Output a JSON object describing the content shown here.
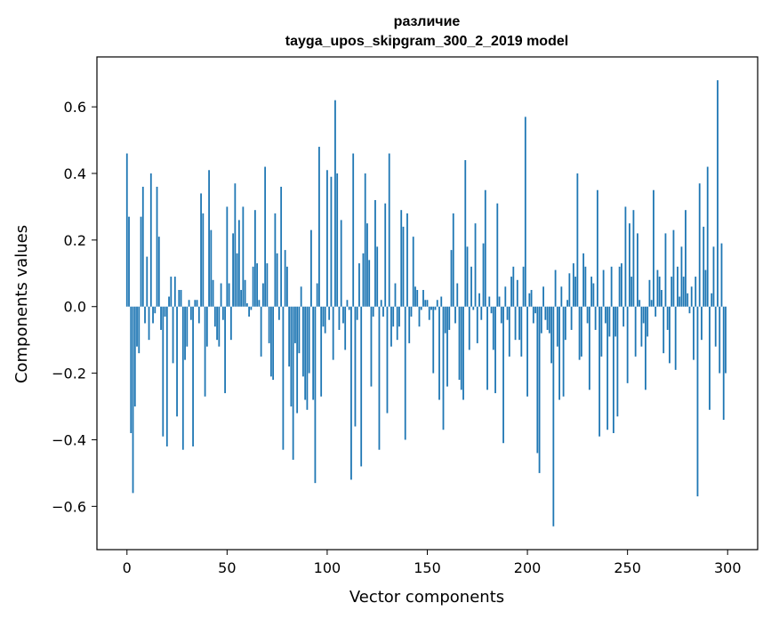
{
  "chart_data": {
    "type": "bar",
    "title": "различие",
    "subtitle": "tayga_upos_skipgram_300_2_2019 model",
    "xlabel": "Vector components",
    "ylabel": "Components values",
    "xlim": [
      -15,
      315
    ],
    "ylim": [
      -0.73,
      0.75
    ],
    "x_ticks": [
      0,
      50,
      100,
      150,
      200,
      250,
      300
    ],
    "x_tick_labels": [
      "0",
      "50",
      "100",
      "150",
      "200",
      "250",
      "300"
    ],
    "y_ticks": [
      -0.6,
      -0.4,
      -0.2,
      0.0,
      0.2,
      0.4,
      0.6
    ],
    "y_tick_labels": [
      "−0.6",
      "−0.4",
      "−0.2",
      "0.0",
      "0.2",
      "0.4",
      "0.6"
    ],
    "grid": false,
    "bar_color": "#1f77b4",
    "x": "indices 0..299",
    "values": [
      0.46,
      0.27,
      -0.38,
      -0.56,
      -0.3,
      -0.12,
      -0.14,
      0.27,
      0.36,
      -0.05,
      0.15,
      -0.1,
      0.4,
      -0.05,
      -0.02,
      0.36,
      0.21,
      -0.07,
      -0.39,
      -0.03,
      -0.42,
      0.03,
      0.09,
      -0.17,
      0.09,
      -0.33,
      0.05,
      0.05,
      -0.43,
      -0.16,
      -0.12,
      0.02,
      -0.04,
      -0.42,
      0.02,
      0.02,
      -0.05,
      0.34,
      0.28,
      -0.27,
      -0.12,
      0.41,
      0.23,
      0.08,
      -0.06,
      -0.1,
      -0.12,
      0.07,
      -0.04,
      -0.26,
      0.3,
      0.07,
      -0.1,
      0.22,
      0.37,
      0.16,
      0.26,
      0.05,
      0.3,
      0.08,
      0.01,
      -0.03,
      -0.01,
      0.12,
      0.29,
      0.13,
      0.02,
      -0.15,
      0.07,
      0.42,
      0.13,
      -0.11,
      -0.21,
      -0.22,
      0.28,
      0.16,
      -0.04,
      0.36,
      -0.43,
      0.17,
      0.12,
      -0.18,
      -0.3,
      -0.46,
      -0.11,
      -0.32,
      -0.14,
      0.06,
      -0.21,
      -0.28,
      -0.31,
      -0.2,
      0.23,
      -0.28,
      -0.53,
      0.07,
      0.48,
      -0.27,
      -0.06,
      -0.08,
      0.41,
      -0.04,
      0.39,
      -0.16,
      0.62,
      0.4,
      -0.07,
      0.26,
      -0.05,
      -0.13,
      0.02,
      -0.01,
      -0.52,
      0.46,
      -0.36,
      -0.04,
      0.13,
      -0.48,
      0.16,
      0.4,
      0.25,
      0.14,
      -0.24,
      -0.03,
      0.32,
      0.18,
      -0.43,
      0.02,
      -0.03,
      0.31,
      -0.32,
      0.46,
      -0.12,
      -0.06,
      0.07,
      -0.1,
      -0.06,
      0.29,
      0.24,
      -0.4,
      0.28,
      -0.11,
      -0.03,
      0.21,
      0.06,
      0.05,
      -0.06,
      -0.01,
      0.05,
      0.02,
      0.02,
      -0.04,
      -0.01,
      -0.2,
      -0.01,
      0.02,
      -0.28,
      0.03,
      -0.37,
      -0.08,
      -0.24,
      -0.07,
      0.17,
      0.28,
      -0.05,
      0.07,
      -0.22,
      -0.25,
      -0.28,
      0.44,
      0.18,
      -0.13,
      0.12,
      -0.01,
      0.25,
      -0.11,
      0.04,
      -0.04,
      0.19,
      0.35,
      -0.25,
      0.03,
      -0.02,
      -0.13,
      -0.26,
      0.31,
      0.03,
      -0.05,
      -0.41,
      0.06,
      -0.04,
      -0.15,
      0.09,
      0.12,
      -0.1,
      0.08,
      -0.1,
      -0.15,
      0.12,
      0.57,
      -0.27,
      0.04,
      0.05,
      -0.05,
      -0.02,
      -0.44,
      -0.5,
      -0.08,
      0.06,
      -0.04,
      -0.07,
      -0.08,
      -0.17,
      -0.66,
      0.11,
      -0.12,
      -0.28,
      0.06,
      -0.27,
      -0.1,
      0.02,
      0.1,
      -0.07,
      0.13,
      0.09,
      0.4,
      -0.16,
      -0.15,
      0.16,
      0.12,
      -0.05,
      -0.25,
      0.09,
      0.07,
      -0.07,
      0.35,
      -0.39,
      -0.15,
      0.11,
      -0.05,
      -0.37,
      -0.09,
      0.12,
      -0.38,
      -0.09,
      -0.33,
      0.12,
      0.13,
      -0.06,
      0.3,
      -0.23,
      0.25,
      0.09,
      0.29,
      -0.15,
      0.22,
      0.02,
      -0.12,
      -0.05,
      -0.25,
      -0.09,
      0.08,
      0.02,
      0.35,
      -0.03,
      0.11,
      0.09,
      0.05,
      -0.14,
      0.22,
      -0.07,
      -0.17,
      0.09,
      0.23,
      -0.19,
      0.12,
      0.03,
      0.18,
      0.09,
      0.29,
      0.04,
      -0.02,
      0.06,
      -0.16,
      0.09,
      -0.57,
      0.37,
      -0.1,
      0.24,
      0.11,
      0.42,
      -0.31,
      0.04,
      0.18,
      -0.12,
      0.68,
      -0.2,
      0.19,
      -0.34,
      -0.2
    ]
  }
}
